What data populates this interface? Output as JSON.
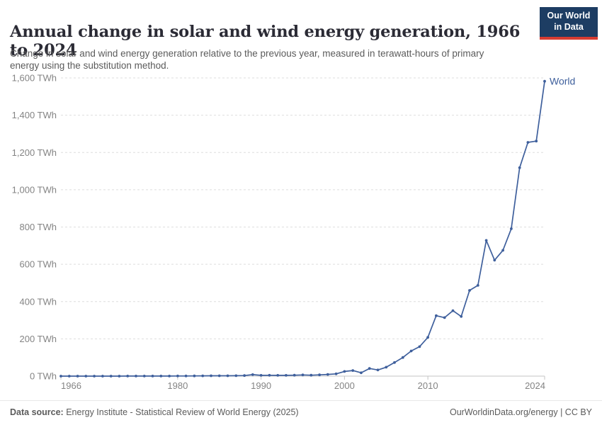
{
  "header": {
    "title": "Annual change in solar and wind energy generation, 1966 to 2024",
    "subtitle": "Change in solar and wind energy generation relative to the previous year, measured in terawatt-hours of primary energy using the substitution method.",
    "logo": {
      "line1": "Our World",
      "line2": "in Data"
    }
  },
  "chart_data": {
    "type": "line",
    "title": "Annual change in solar and wind energy generation, 1966 to 2024",
    "series": [
      {
        "name": "World",
        "x": [
          1966,
          1967,
          1968,
          1969,
          1970,
          1971,
          1972,
          1973,
          1974,
          1975,
          1976,
          1977,
          1978,
          1979,
          1980,
          1981,
          1982,
          1983,
          1984,
          1985,
          1986,
          1987,
          1988,
          1989,
          1990,
          1991,
          1992,
          1993,
          1994,
          1995,
          1996,
          1997,
          1998,
          1999,
          2000,
          2001,
          2002,
          2003,
          2004,
          2005,
          2006,
          2007,
          2008,
          2009,
          2010,
          2011,
          2012,
          2013,
          2014,
          2015,
          2016,
          2017,
          2018,
          2019,
          2020,
          2021,
          2022,
          2023,
          2024
        ],
        "values": [
          0,
          0,
          0,
          0,
          0.1,
          0.1,
          0.1,
          0.1,
          0.2,
          0.2,
          0.3,
          0.3,
          0.4,
          0.5,
          0.6,
          0.8,
          1,
          1.5,
          2,
          2,
          1.8,
          2.2,
          3,
          8,
          4,
          4.5,
          4,
          4.2,
          5,
          6.5,
          5,
          7,
          9,
          12,
          25,
          30,
          18,
          41,
          33,
          48,
          73,
          100,
          135,
          158,
          208,
          324,
          314,
          351,
          320,
          460,
          487,
          728,
          622,
          675,
          791,
          1118,
          1254,
          1261,
          1582
        ]
      }
    ],
    "xlabel": "",
    "ylabel": "",
    "xlim": [
      1966,
      2024
    ],
    "ylim": [
      0,
      1600
    ],
    "x_ticks": [
      1966,
      1980,
      1990,
      2000,
      2010,
      2024
    ],
    "x_tick_labels": [
      "1966",
      "1980",
      "1990",
      "2000",
      "2010",
      "2024"
    ],
    "y_ticks": [
      0,
      200,
      400,
      600,
      800,
      1000,
      1200,
      1400,
      1600
    ],
    "y_tick_labels": [
      "0 TWh",
      "200 TWh",
      "400 TWh",
      "600 TWh",
      "800 TWh",
      "1,000 TWh",
      "1,200 TWh",
      "1,400 TWh",
      "1,600 TWh"
    ],
    "grid": "dashed-horizontal",
    "legend": "end-of-line-label",
    "end_label": "World"
  },
  "footer": {
    "source_label": "Data source:",
    "source_text": " Energy Institute - Statistical Review of World Energy (2025)",
    "credit": "OurWorldinData.org/energy | CC BY"
  },
  "colors": {
    "line": "#3e5f9c",
    "series_label": "#3e5f9c",
    "title": "#2b2b35",
    "subtitle": "#5b5b5b",
    "tick_label": "#848484",
    "gridline": "#dedede",
    "axis": "#c4c4c4",
    "logo_bg": "#1d3d63",
    "logo_accent": "#d73c32",
    "footer_text": "#5b5b5b"
  }
}
